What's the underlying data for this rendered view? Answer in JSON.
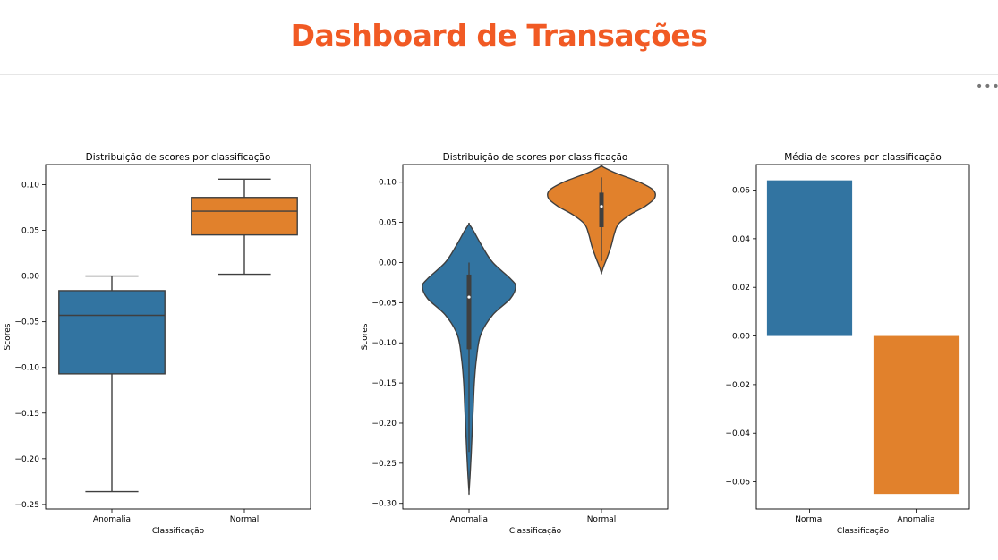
{
  "page": {
    "title": "Dashboard de Transações",
    "menu_icon": "more-horizontal-icon",
    "menu_glyph": "•••"
  },
  "colors": {
    "blue": "#3274a1",
    "orange": "#e1812c",
    "title": "#f15a24"
  },
  "chart_data": [
    {
      "type": "box",
      "title": "Distribuição de scores por classificação",
      "xlabel": "Classificação",
      "ylabel": "Scores",
      "categories": [
        "Anomalia",
        "Normal"
      ],
      "ylim": [
        -0.255,
        0.122
      ],
      "yticks": [
        0.1,
        0.05,
        0.0,
        -0.05,
        -0.1,
        -0.15,
        -0.2,
        -0.25
      ],
      "ytick_labels": [
        "0.10",
        "0.05",
        "0.00",
        "−0.05",
        "−0.10",
        "−0.15",
        "−0.20",
        "−0.25"
      ],
      "boxes": [
        {
          "category": "Anomalia",
          "whisker_low": -0.236,
          "q1": -0.107,
          "median": -0.043,
          "q3": -0.016,
          "whisker_high": 0.0,
          "color": "#3274a1"
        },
        {
          "category": "Normal",
          "whisker_low": 0.002,
          "q1": 0.045,
          "median": 0.071,
          "q3": 0.086,
          "whisker_high": 0.106,
          "color": "#e1812c"
        }
      ]
    },
    {
      "type": "violin",
      "title": "Distribuição de scores por classificação",
      "xlabel": "Classificação",
      "ylabel": "Scores",
      "categories": [
        "Anomalia",
        "Normal"
      ],
      "ylim": [
        -0.307,
        0.122
      ],
      "yticks": [
        0.1,
        0.05,
        0.0,
        -0.05,
        -0.1,
        -0.15,
        -0.2,
        -0.25,
        -0.3
      ],
      "ytick_labels": [
        "0.10",
        "0.05",
        "0.00",
        "−0.05",
        "−0.10",
        "−0.15",
        "−0.20",
        "−0.25",
        "−0.30"
      ],
      "violins": [
        {
          "category": "Anomalia",
          "color": "#3274a1",
          "q1": -0.108,
          "median": -0.043,
          "q3": -0.015,
          "whisker_low": -0.236,
          "whisker_high": 0.0,
          "density": [
            [
              0.048,
              0.0
            ],
            [
              0.04,
              0.08
            ],
            [
              0.02,
              0.25
            ],
            [
              0.0,
              0.45
            ],
            [
              -0.02,
              0.78
            ],
            [
              -0.03,
              0.88
            ],
            [
              -0.045,
              0.78
            ],
            [
              -0.065,
              0.45
            ],
            [
              -0.09,
              0.22
            ],
            [
              -0.12,
              0.14
            ],
            [
              -0.15,
              0.1
            ],
            [
              -0.18,
              0.08
            ],
            [
              -0.21,
              0.06
            ],
            [
              -0.24,
              0.04
            ],
            [
              -0.265,
              0.02
            ],
            [
              -0.286,
              0.0
            ]
          ]
        },
        {
          "category": "Normal",
          "color": "#e1812c",
          "q1": 0.044,
          "median": 0.07,
          "q3": 0.087,
          "whisker_low": 0.002,
          "whisker_high": 0.106,
          "density": [
            [
              0.12,
              0.0
            ],
            [
              0.112,
              0.25
            ],
            [
              0.1,
              0.72
            ],
            [
              0.09,
              0.98
            ],
            [
              0.08,
              1.0
            ],
            [
              0.07,
              0.82
            ],
            [
              0.06,
              0.55
            ],
            [
              0.048,
              0.32
            ],
            [
              0.035,
              0.24
            ],
            [
              0.02,
              0.18
            ],
            [
              0.005,
              0.1
            ],
            [
              -0.005,
              0.04
            ],
            [
              -0.013,
              0.0
            ]
          ]
        }
      ]
    },
    {
      "type": "bar",
      "title": "Média de scores por classificação",
      "xlabel": "Classificação",
      "ylabel": "",
      "categories": [
        "Normal",
        "Anomalia"
      ],
      "values": [
        0.064,
        -0.065
      ],
      "colors": [
        "#3274a1",
        "#e1812c"
      ],
      "ylim": [
        -0.0712,
        0.0705
      ],
      "yticks": [
        0.06,
        0.04,
        0.02,
        0.0,
        -0.02,
        -0.04,
        -0.06
      ],
      "ytick_labels": [
        "0.06",
        "0.04",
        "0.02",
        "0.00",
        "−0.02",
        "−0.04",
        "−0.06"
      ]
    }
  ]
}
